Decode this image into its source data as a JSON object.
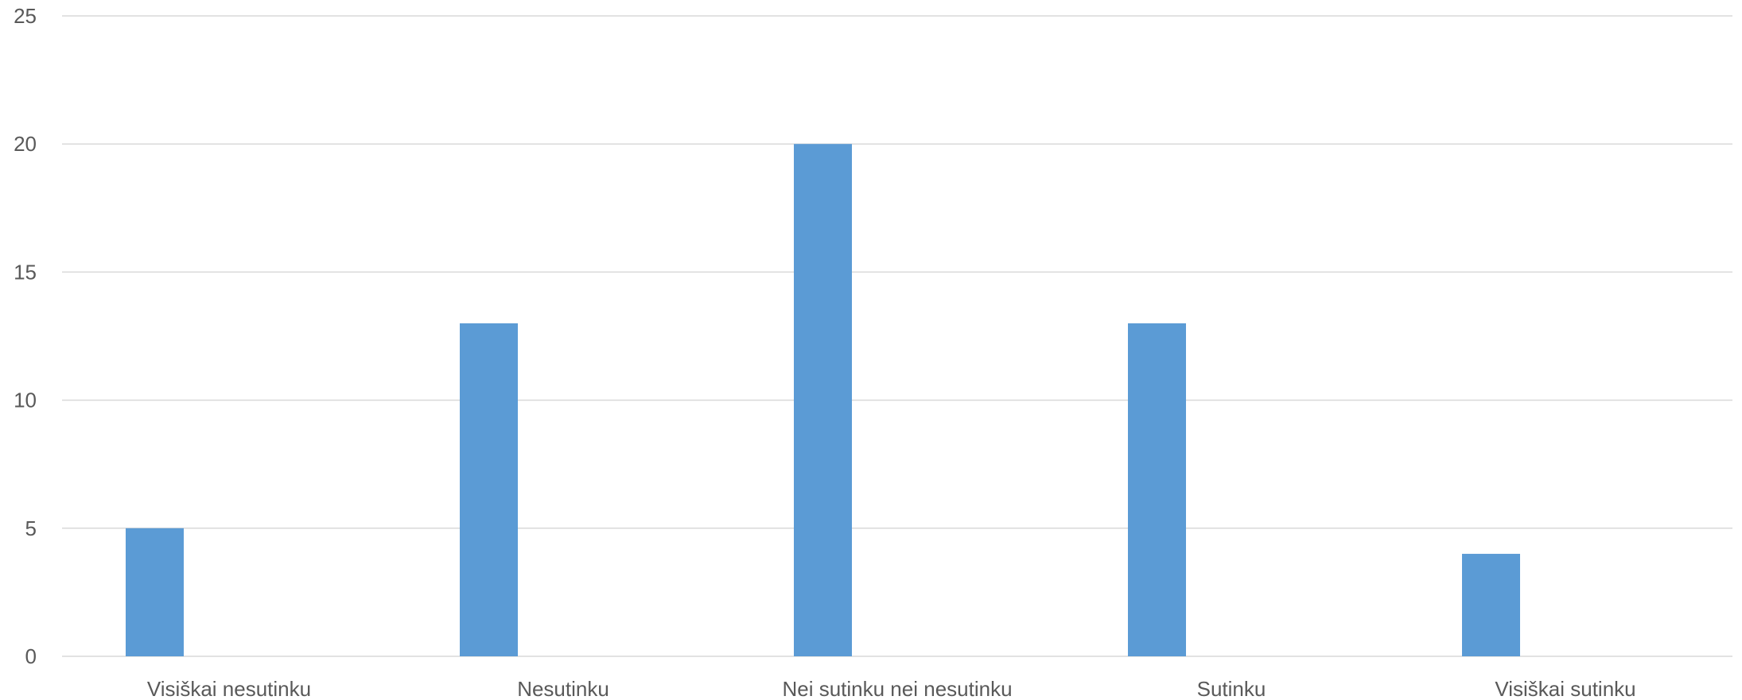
{
  "chart_data": {
    "type": "bar",
    "categories": [
      "Visiškai nesutinku",
      "Nesutinku",
      "Nei sutinku nei nesutinku",
      "Sutinku",
      "Visiškai sutinku"
    ],
    "values": [
      5,
      13,
      20,
      13,
      4
    ],
    "title": "",
    "xlabel": "",
    "ylabel": "",
    "ylim": [
      0,
      25
    ],
    "yticks": [
      "0",
      "5",
      "10",
      "15",
      "20",
      "25"
    ],
    "grid": true,
    "legend": "none",
    "bar_color": "#5b9bd5"
  }
}
